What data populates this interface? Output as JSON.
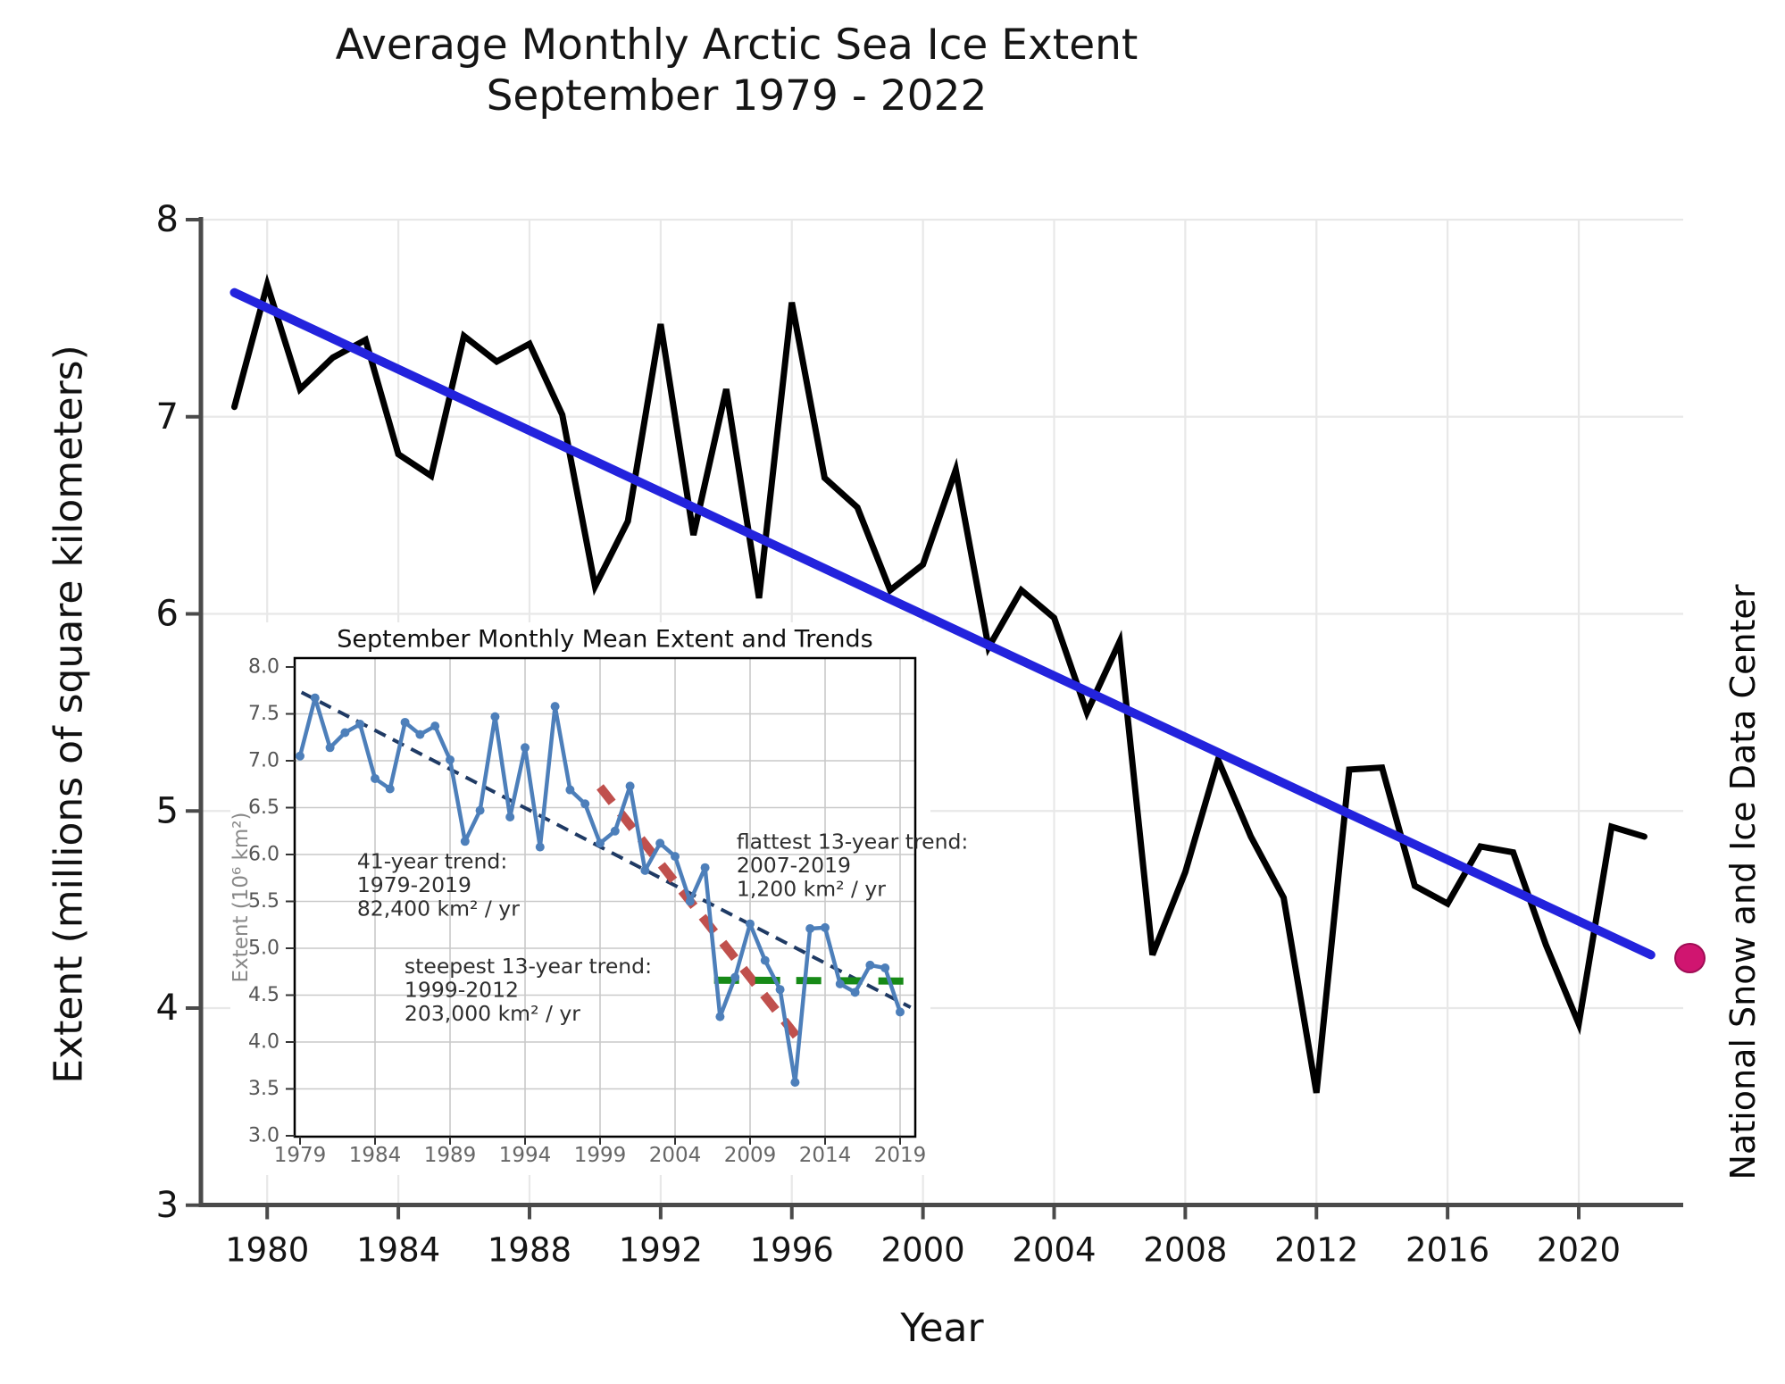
{
  "title": {
    "line1": "Average Monthly Arctic Sea Ice Extent",
    "line2": "September 1979 - 2022"
  },
  "axes": {
    "main": {
      "xlabel": "Year",
      "ylabel": "Extent (millions of square kilometers)"
    }
  },
  "branding": {
    "text": "National Snow and Ice Data Center",
    "dot_color": "#d01570"
  },
  "chart_data": [
    {
      "id": "main",
      "type": "line",
      "title": "Average Monthly Arctic Sea Ice Extent September 1979 - 2022",
      "xlabel": "Year",
      "ylabel": "Extent (millions of square kilometers)",
      "xlim": [
        1978.4,
        2023.2
      ],
      "ylim": [
        3,
        8
      ],
      "grid": true,
      "line_color": "#000000",
      "x_ticks": [
        1980,
        1984,
        1988,
        1992,
        1996,
        2000,
        2004,
        2008,
        2012,
        2016,
        2020
      ],
      "x_tick_labels": [
        "1980",
        "1984",
        "1988",
        "1992",
        "1996",
        "2000",
        "2004",
        "2008",
        "2012",
        "2016",
        "2020"
      ],
      "y_ticks": [
        3,
        4,
        5,
        6,
        7,
        8
      ],
      "y_tick_labels": [
        "3",
        "4",
        "5",
        "6",
        "7",
        "8"
      ],
      "x": [
        1979,
        1980,
        1981,
        1982,
        1983,
        1984,
        1985,
        1986,
        1987,
        1988,
        1989,
        1990,
        1991,
        1992,
        1993,
        1994,
        1995,
        1996,
        1997,
        1998,
        1999,
        2000,
        2001,
        2002,
        2003,
        2004,
        2005,
        2006,
        2007,
        2008,
        2009,
        2010,
        2011,
        2012,
        2013,
        2014,
        2015,
        2016,
        2017,
        2018,
        2019,
        2020,
        2021,
        2022
      ],
      "values": [
        7.05,
        7.67,
        7.14,
        7.3,
        7.39,
        6.81,
        6.7,
        7.41,
        7.28,
        7.37,
        7.01,
        6.14,
        6.47,
        7.47,
        6.4,
        7.14,
        6.08,
        7.58,
        6.69,
        6.54,
        6.12,
        6.25,
        6.73,
        5.83,
        6.12,
        5.98,
        5.5,
        5.86,
        4.27,
        4.69,
        5.26,
        4.87,
        4.56,
        3.57,
        5.21,
        5.22,
        4.62,
        4.53,
        4.82,
        4.79,
        4.32,
        3.92,
        4.92,
        4.87
      ],
      "trend": {
        "name": "linear-trend",
        "color": "#2323dd",
        "x": [
          1979,
          2022.2
        ],
        "values": [
          7.63,
          4.27
        ]
      }
    },
    {
      "id": "inset",
      "type": "line",
      "title": "September Monthly Mean Extent and Trends",
      "ylabel": "Extent (10⁶ km²)",
      "xlim": [
        1978.6,
        2020.0
      ],
      "ylim": [
        3.0,
        8.0
      ],
      "grid": true,
      "line_color": "#4d7fba",
      "x_ticks": [
        1979,
        1984,
        1989,
        1994,
        1999,
        2004,
        2009,
        2014,
        2019
      ],
      "x_tick_labels": [
        "1979",
        "1984",
        "1989",
        "1994",
        "1999",
        "2004",
        "2009",
        "2014",
        "2019"
      ],
      "y_ticks": [
        3.0,
        3.5,
        4.0,
        4.5,
        5.0,
        5.5,
        6.0,
        6.5,
        7.0,
        7.5,
        8.0
      ],
      "y_tick_labels": [
        "3.0",
        "3.5",
        "4.0",
        "4.5",
        "5.0",
        "5.5",
        "6.0",
        "6.5",
        "7.0",
        "7.5",
        "8.0"
      ],
      "x": [
        1979,
        1980,
        1981,
        1982,
        1983,
        1984,
        1985,
        1986,
        1987,
        1988,
        1989,
        1990,
        1991,
        1992,
        1993,
        1994,
        1995,
        1996,
        1997,
        1998,
        1999,
        2000,
        2001,
        2002,
        2003,
        2004,
        2005,
        2006,
        2007,
        2008,
        2009,
        2010,
        2011,
        2012,
        2013,
        2014,
        2015,
        2016,
        2017,
        2018,
        2019
      ],
      "values": [
        7.05,
        7.67,
        7.14,
        7.3,
        7.39,
        6.81,
        6.7,
        7.41,
        7.28,
        7.37,
        7.01,
        6.14,
        6.47,
        7.47,
        6.4,
        7.14,
        6.08,
        7.58,
        6.69,
        6.54,
        6.12,
        6.25,
        6.73,
        5.83,
        6.12,
        5.98,
        5.5,
        5.86,
        4.27,
        4.69,
        5.26,
        4.87,
        4.56,
        3.57,
        5.21,
        5.22,
        4.62,
        4.53,
        4.82,
        4.79,
        4.32
      ],
      "trends": [
        {
          "name": "41-year-trend",
          "color": "#1f3a64",
          "style": "dashed",
          "x": [
            1979.1,
            2019.7
          ],
          "values": [
            7.73,
            4.37
          ],
          "annotation": {
            "lines": [
              "41-year trend:",
              "1979-2019",
              "82,400 km² / yr"
            ],
            "anchor": {
              "x": 1982.8,
              "v": 5.93
            }
          }
        },
        {
          "name": "steepest-13-year-trend",
          "color": "#c0504d",
          "style": "dashed",
          "x": [
            1999.0,
            2012.3
          ],
          "values": [
            6.72,
            4.02
          ],
          "annotation": {
            "lines": [
              "steepest 13-year trend:",
              "1999-2012",
              "203,000 km² / yr"
            ],
            "anchor": {
              "x": 1985.96,
              "v": 4.81
            }
          }
        },
        {
          "name": "flattest-13-year-trend",
          "color": "#178a17",
          "style": "dashed",
          "x": [
            2006.6,
            2019.6
          ],
          "values": [
            4.66,
            4.65
          ],
          "annotation": {
            "lines": [
              "flattest 13-year trend:",
              "2007-2019",
              "1,200 km² / yr"
            ],
            "anchor": {
              "x": 2008.1,
              "v": 6.14
            }
          }
        }
      ]
    }
  ]
}
